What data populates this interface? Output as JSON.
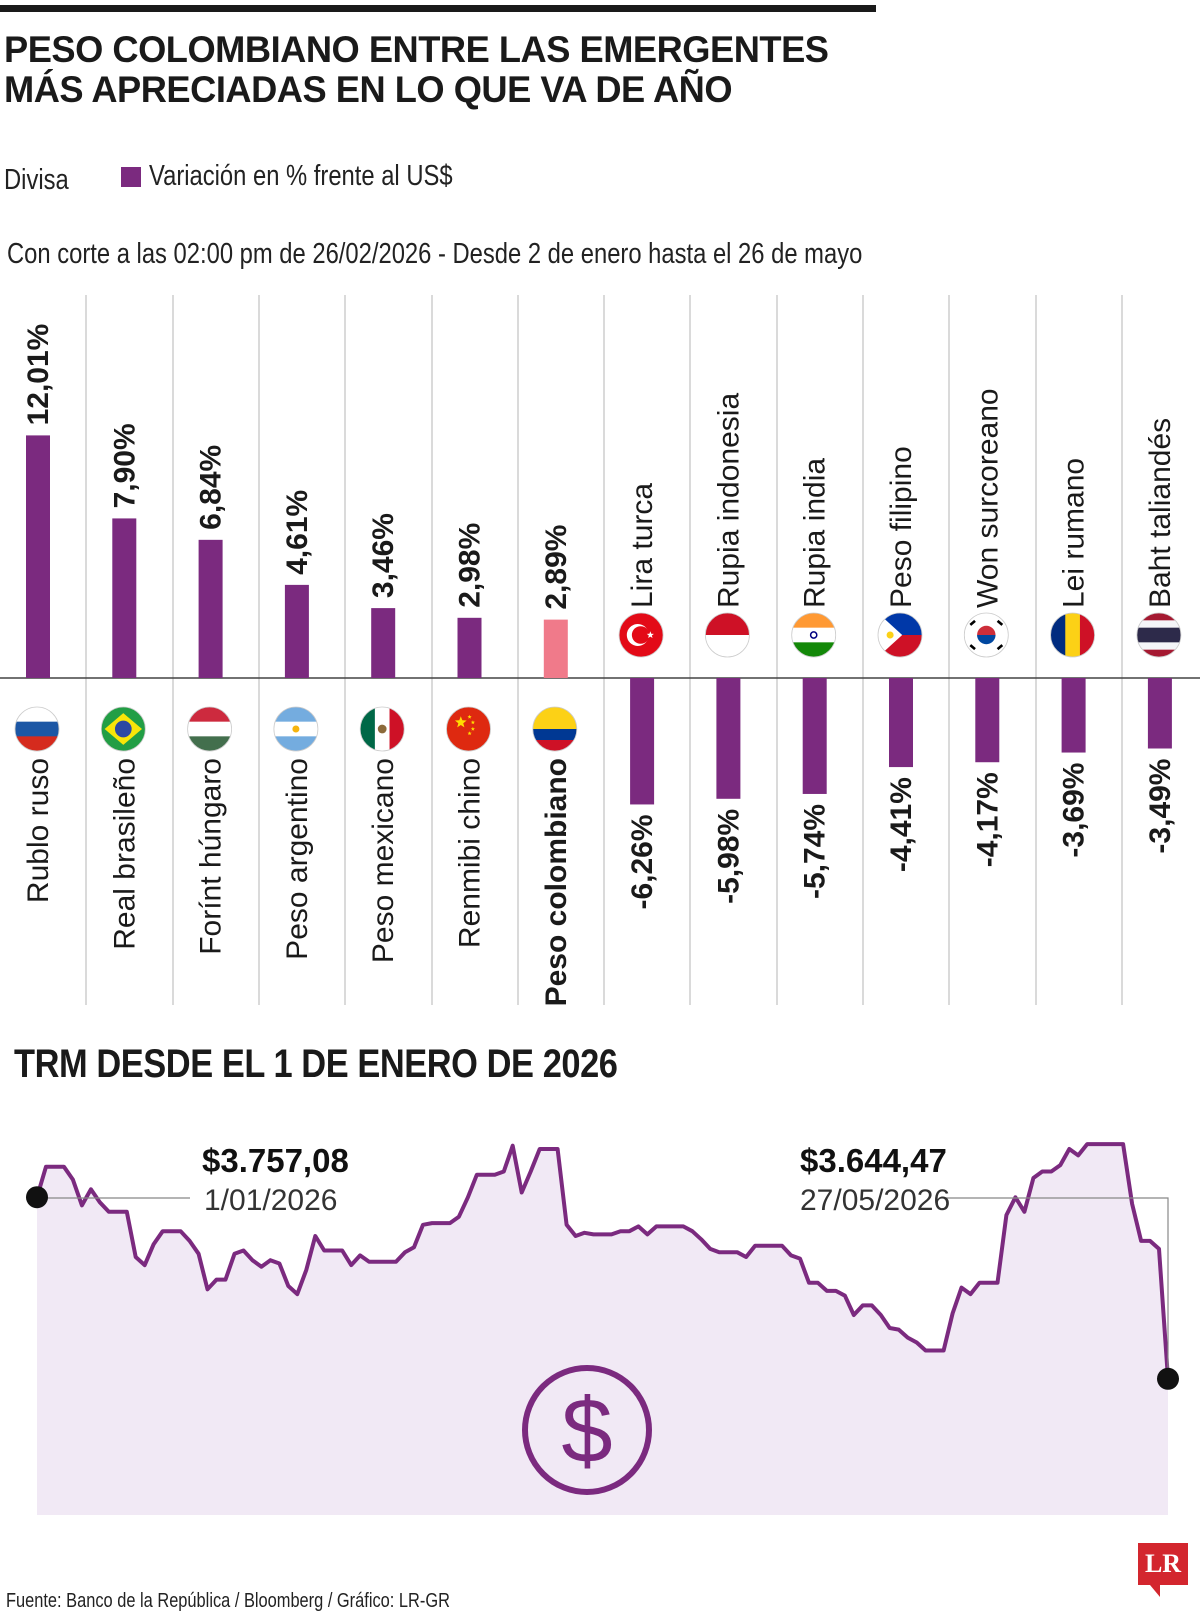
{
  "title": {
    "line1": "PESO COLOMBIANO ENTRE LAS EMERGENTES",
    "line2": "MÁS APRECIADAS EN LO QUE VA DE AÑO"
  },
  "legend": {
    "category_label": "Divisa",
    "series_label": "Variación en % frente al US$",
    "series_color": "#7b2a7f"
  },
  "subtitle": "Con corte a las 02:00 pm de 26/02/2026 - Desde 2 de enero hasta el 26 de mayo",
  "trm": {
    "title": "TRM DESDE EL 1 DE ENERO DE 2026",
    "start_value": "$3.757,08",
    "start_date": "1/01/2026",
    "end_value": "$3.644,47",
    "end_date": "27/05/2026"
  },
  "source": "Fuente: Banco de la República / Bloomberg / Gráfico: LR-GR",
  "logo": "LR",
  "chart_data": [
    {
      "type": "bar",
      "orientation": "vertical",
      "categories": [
        "Rublo ruso",
        "Real brasileño",
        "Forínt húngaro",
        "Peso argentino",
        "Peso mexicano",
        "Renmibi chino",
        "Peso colombiano",
        "Lira turca",
        "Rupia indonesia",
        "Rupia india",
        "Peso filipino",
        "Won surcoreano",
        "Lei rumano",
        "Baht taliandés"
      ],
      "values": [
        12.01,
        7.9,
        6.84,
        4.61,
        3.46,
        2.98,
        2.89,
        -6.26,
        -5.98,
        -5.74,
        -4.41,
        -4.17,
        -3.69,
        -3.49
      ],
      "value_labels": [
        "12,01%",
        "7,90%",
        "6,84%",
        "4,61%",
        "3,46%",
        "2,98%",
        "2,89%",
        "-6,26%",
        "-5,98%",
        "-5,74%",
        "-4,41%",
        "-4,17%",
        "-3,69%",
        "-3,49%"
      ],
      "flags": [
        "russia-flag-icon",
        "brazil-flag-icon",
        "hungary-flag-icon",
        "argentina-flag-icon",
        "mexico-flag-icon",
        "china-flag-icon",
        "colombia-flag-icon",
        "turkey-flag-icon",
        "indonesia-flag-icon",
        "india-flag-icon",
        "philippines-flag-icon",
        "south-korea-flag-icon",
        "romania-flag-icon",
        "thailand-flag-icon"
      ],
      "highlight": "Peso colombiano",
      "highlight_color": "#f07a8a",
      "bar_color": "#7b2a7f"
    },
    {
      "type": "area",
      "series_color": "#7b2a7f",
      "fill_color": "#f1e9f5",
      "annotations": [
        {
          "label": "$3.757,08",
          "date": "1/01/2026"
        },
        {
          "label": "$3.644,47",
          "date": "27/05/2026"
        }
      ],
      "y_range": [
        3560,
        3800
      ],
      "values": [
        3757.08,
        3776,
        3776,
        3776,
        3768,
        3752,
        3762,
        3754,
        3748,
        3748,
        3748,
        3720,
        3715,
        3728,
        3736,
        3736,
        3736,
        3730,
        3722,
        3700,
        3706,
        3706,
        3722,
        3724,
        3718,
        3714,
        3718,
        3716,
        3702,
        3697,
        3712,
        3733,
        3724,
        3724,
        3724,
        3715,
        3721,
        3717,
        3717,
        3717,
        3717,
        3723,
        3726,
        3740,
        3741,
        3741,
        3741,
        3745,
        3757,
        3771,
        3771,
        3771,
        3773,
        3789,
        3760,
        3773,
        3787,
        3787,
        3787,
        3740,
        3733,
        3735,
        3734,
        3734,
        3734,
        3736,
        3736,
        3739,
        3734,
        3739,
        3739,
        3739,
        3739,
        3736,
        3731,
        3725,
        3723,
        3723,
        3723,
        3720,
        3727,
        3727,
        3727,
        3727,
        3721,
        3719,
        3704,
        3704,
        3699,
        3699,
        3696,
        3684,
        3690,
        3690,
        3684,
        3676,
        3675,
        3670,
        3667,
        3662,
        3662,
        3662,
        3685,
        3701,
        3697,
        3704,
        3704,
        3704,
        3746,
        3757,
        3748,
        3769,
        3773,
        3773,
        3777,
        3787,
        3783,
        3790,
        3790,
        3790,
        3790,
        3790,
        3753,
        3730,
        3730,
        3725,
        3644.47
      ]
    }
  ]
}
